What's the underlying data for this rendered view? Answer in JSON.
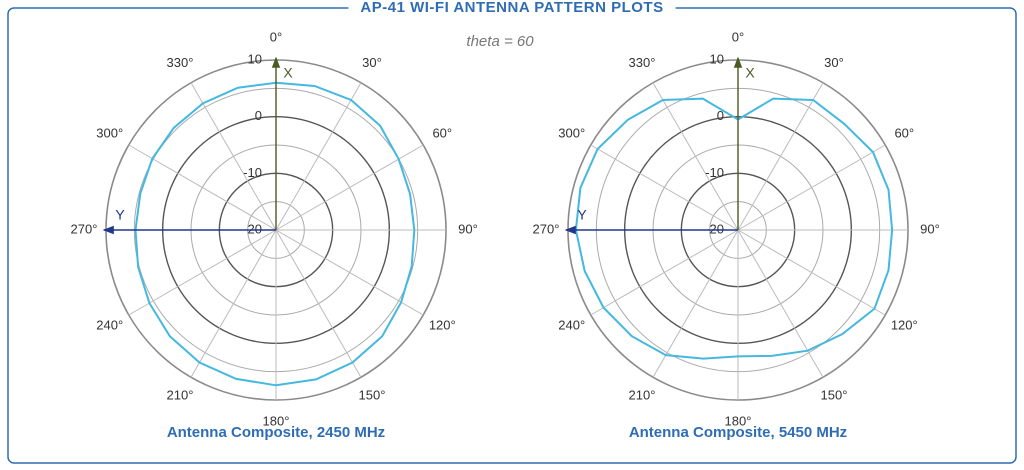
{
  "title": "AP-41 WI-FI ANTENNA PATTERN PLOTS",
  "subtitle": "theta = 60",
  "chart_data": [
    {
      "type": "polar",
      "title": "Antenna Composite, 2450 MHz",
      "color": "#45b8df",
      "theta": [
        0,
        15,
        30,
        45,
        60,
        75,
        90,
        105,
        120,
        135,
        150,
        165,
        180,
        195,
        210,
        225,
        240,
        255,
        270,
        285,
        300,
        315,
        330,
        345
      ],
      "values": [
        6,
        6.3,
        6.5,
        6,
        5,
        4.5,
        4.4,
        4.8,
        5.5,
        6.5,
        7,
        7.3,
        7.4,
        7.2,
        7,
        6.5,
        5.8,
        5.2,
        4.8,
        4.8,
        5.2,
        5.5,
        5.8,
        6
      ],
      "rlim": [
        -20,
        10
      ],
      "rticks": [
        -20,
        -10,
        0,
        10
      ],
      "rgrid": [
        -20,
        -15,
        -10,
        -5,
        0,
        5,
        10
      ],
      "thetaticks": [
        {
          "value": 0,
          "label": "0°"
        },
        {
          "value": 30,
          "label": "30°"
        },
        {
          "value": 60,
          "label": "60°"
        },
        {
          "value": 90,
          "label": "90°"
        },
        {
          "value": 120,
          "label": "120°"
        },
        {
          "value": 150,
          "label": "150°"
        },
        {
          "value": 180,
          "label": "180°"
        },
        {
          "value": 210,
          "label": "210°"
        },
        {
          "value": 240,
          "label": "240°"
        },
        {
          "value": 270,
          "label": "270°"
        },
        {
          "value": 300,
          "label": "300°"
        },
        {
          "value": 330,
          "label": "330°"
        }
      ],
      "direction": "clockwise",
      "zero": "top",
      "axes": [
        {
          "label": "X",
          "angle": 0,
          "color": "#4b5a23"
        },
        {
          "label": "Y",
          "angle": 270,
          "color": "#22368a"
        }
      ]
    },
    {
      "type": "polar",
      "title": "Antenna Composite, 5450 MHz",
      "color": "#45b8df",
      "theta": [
        0,
        15,
        30,
        45,
        60,
        75,
        90,
        105,
        120,
        135,
        150,
        165,
        180,
        195,
        210,
        225,
        240,
        255,
        270,
        285,
        300,
        315,
        330,
        345
      ],
      "values": [
        -0.5,
        4,
        6.5,
        6.5,
        7.5,
        7.5,
        7.2,
        7.5,
        7.8,
        6,
        4.6,
        3,
        2.3,
        3.5,
        5.5,
        6.5,
        7.4,
        8,
        8.6,
        8.8,
        8.6,
        7.5,
        6.5,
        4
      ],
      "rlim": [
        -20,
        10
      ],
      "rticks": [
        -20,
        -10,
        0,
        10
      ],
      "rgrid": [
        -20,
        -15,
        -10,
        -5,
        0,
        5,
        10
      ],
      "thetaticks": [
        {
          "value": 0,
          "label": "0°"
        },
        {
          "value": 30,
          "label": "30°"
        },
        {
          "value": 60,
          "label": "60°"
        },
        {
          "value": 90,
          "label": "90°"
        },
        {
          "value": 120,
          "label": "120°"
        },
        {
          "value": 150,
          "label": "150°"
        },
        {
          "value": 180,
          "label": "180°"
        },
        {
          "value": 210,
          "label": "210°"
        },
        {
          "value": 240,
          "label": "240°"
        },
        {
          "value": 270,
          "label": "270°"
        },
        {
          "value": 300,
          "label": "300°"
        },
        {
          "value": 330,
          "label": "330°"
        }
      ],
      "direction": "clockwise",
      "zero": "top",
      "axes": [
        {
          "label": "X",
          "angle": 0,
          "color": "#4b5a23"
        },
        {
          "label": "Y",
          "angle": 270,
          "color": "#22368a"
        }
      ]
    }
  ]
}
